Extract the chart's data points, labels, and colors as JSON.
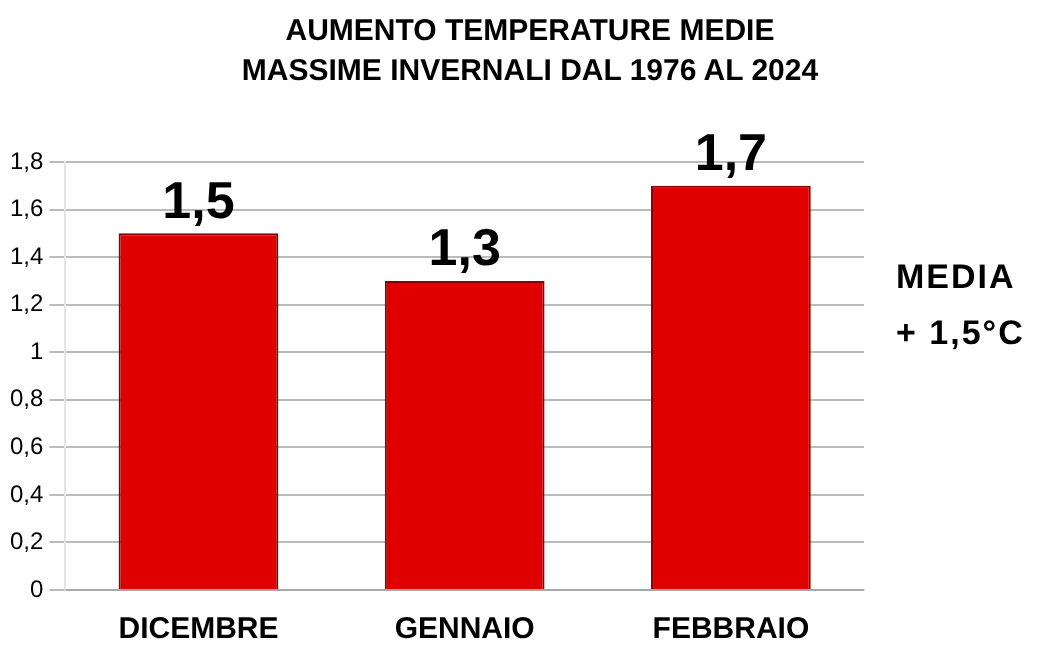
{
  "chart_data": {
    "type": "bar",
    "title": "AUMENTO TEMPERATURE MEDIE MASSIME INVERNALI DAL 1976 AL 2024",
    "categories": [
      "DICEMBRE",
      "GENNAIO",
      "FEBBRAIO"
    ],
    "values": [
      1.5,
      1.3,
      1.7
    ],
    "value_labels": [
      "1,5",
      "1,3",
      "1,7"
    ],
    "color": "#e00000",
    "ylim": [
      0,
      1.8
    ],
    "yticks": [
      0,
      {
        "value": 0.2,
        "label": "0,2"
      },
      {
        "value": 0.4,
        "label": "0,4"
      },
      {
        "value": 0.6,
        "label": "0,6"
      },
      {
        "value": 0.8,
        "label": "0,8"
      },
      1,
      {
        "value": 1.2,
        "label": "1,2"
      },
      {
        "value": 1.4,
        "label": "1,4"
      },
      {
        "value": 1.6,
        "label": "1,6"
      },
      {
        "value": 1.8,
        "label": "1,8"
      }
    ],
    "grid": "y",
    "legend": false,
    "annotations": [
      "MEDIA + 1,5°C"
    ]
  }
}
